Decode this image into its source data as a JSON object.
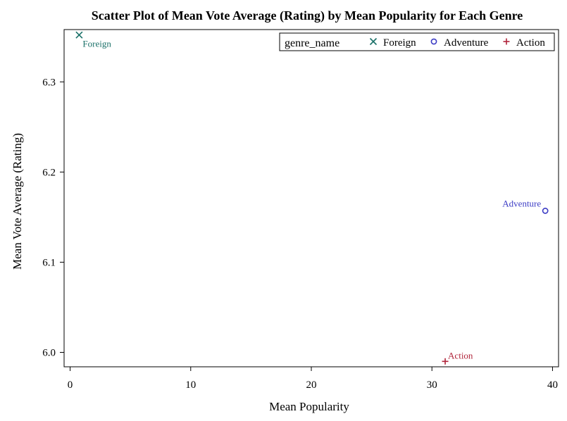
{
  "chart_data": {
    "type": "scatter",
    "title": "Scatter Plot of Mean Vote Average (Rating) by Mean Popularity for Each Genre",
    "xlabel": "Mean Popularity",
    "ylabel": "Mean Vote Average (Rating)",
    "xlim": [
      -0.5,
      40.5
    ],
    "ylim": [
      5.984,
      6.358
    ],
    "xticks": [
      0,
      10,
      20,
      30,
      40
    ],
    "yticks": [
      6.0,
      6.1,
      6.2,
      6.3
    ],
    "grid": false,
    "legend": {
      "title": "genre_name",
      "placement": "top-right",
      "entries": [
        "Foreign",
        "Adventure",
        "Action"
      ]
    },
    "series": [
      {
        "name": "Foreign",
        "marker": "x",
        "color": "#1a7068",
        "points": [
          {
            "x": 0.75,
            "y": 6.352,
            "label": "Foreign"
          }
        ]
      },
      {
        "name": "Adventure",
        "marker": "o",
        "color": "#3b3bc4",
        "points": [
          {
            "x": 39.4,
            "y": 6.157,
            "label": "Adventure"
          }
        ]
      },
      {
        "name": "Action",
        "marker": "+",
        "color": "#b0243a",
        "points": [
          {
            "x": 31.1,
            "y": 5.99,
            "label": "Action"
          }
        ]
      }
    ]
  }
}
